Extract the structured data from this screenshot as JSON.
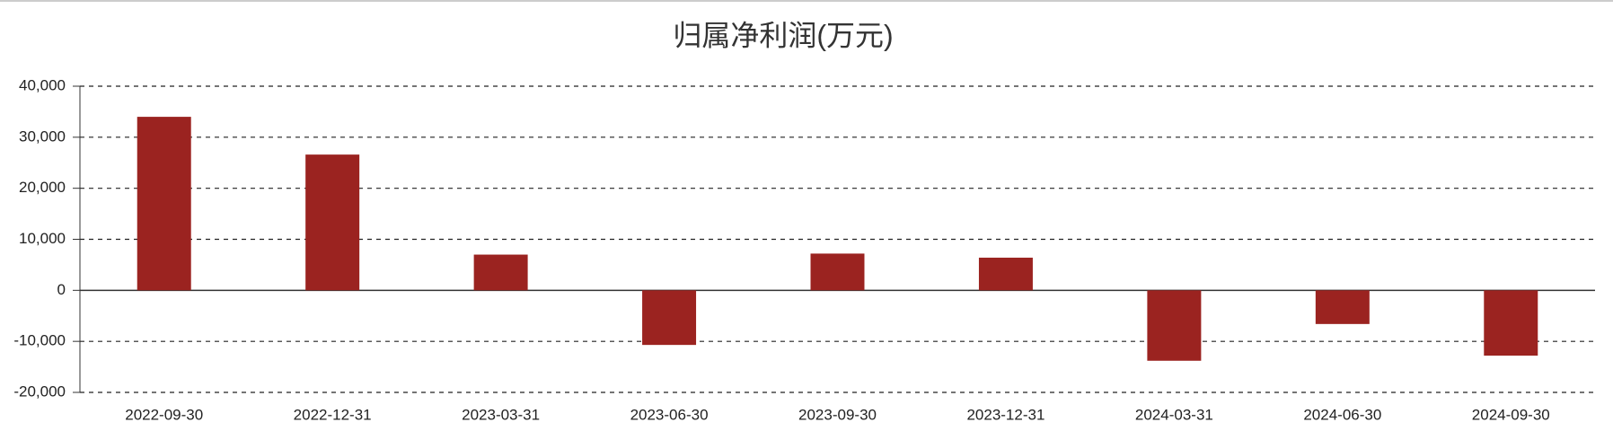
{
  "chart_data": {
    "type": "bar",
    "title": "归属净利润(万元)",
    "categories": [
      "2022-09-30",
      "2022-12-31",
      "2023-03-31",
      "2023-06-30",
      "2023-09-30",
      "2023-12-31",
      "2024-03-31",
      "2024-06-30",
      "2024-09-30"
    ],
    "values": [
      34000,
      26600,
      7000,
      -10700,
      7200,
      6400,
      -13800,
      -6600,
      -12800
    ],
    "color": "#9b2320",
    "ylim": [
      -20000,
      40000
    ],
    "yticks": [
      {
        "value": -20000,
        "label": "-20,000"
      },
      {
        "value": -10000,
        "label": "-10,000"
      },
      0,
      {
        "value": 10000,
        "label": "10,000"
      },
      {
        "value": 20000,
        "label": "20,000"
      },
      {
        "value": 30000,
        "label": "30,000"
      },
      {
        "value": 40000,
        "label": "40,000"
      }
    ],
    "grid": true
  }
}
